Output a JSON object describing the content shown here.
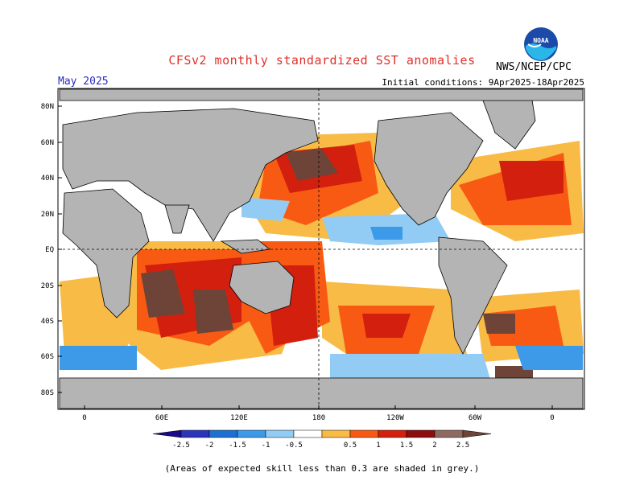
{
  "header": {
    "title": "CFSv2 monthly standardized SST anomalies",
    "agency": "NWS/NCEP/CPC",
    "logo_text": "NOAA",
    "month": "May 2025",
    "initial_conditions": "Initial conditions: 9Apr2025-18Apr2025"
  },
  "map": {
    "lat_labels": [
      "80N",
      "60N",
      "40N",
      "20N",
      "EQ",
      "20S",
      "40S",
      "60S",
      "80S"
    ],
    "lon_labels": [
      "0",
      "60E",
      "120E",
      "180",
      "120W",
      "60W",
      "0"
    ],
    "land_color": "#b4b4b4",
    "unskilled_color": "#c6c6c6"
  },
  "colorbar": {
    "ticks": [
      "-2.5",
      "-2",
      "-1.5",
      "-1",
      "-0.5",
      "0.5",
      "1",
      "1.5",
      "2",
      "2.5"
    ],
    "colors": [
      "#1a0a8c",
      "#2a35b8",
      "#1e6fd2",
      "#3c9ae8",
      "#92ccf4",
      "#ffffff",
      "#f8bb45",
      "#f85a14",
      "#d21f0e",
      "#8c0d0d",
      "#8e6a60",
      "#6e4438"
    ]
  },
  "footer": {
    "note": "(Areas of expected skill less than 0.3 are shaded in grey.)"
  }
}
